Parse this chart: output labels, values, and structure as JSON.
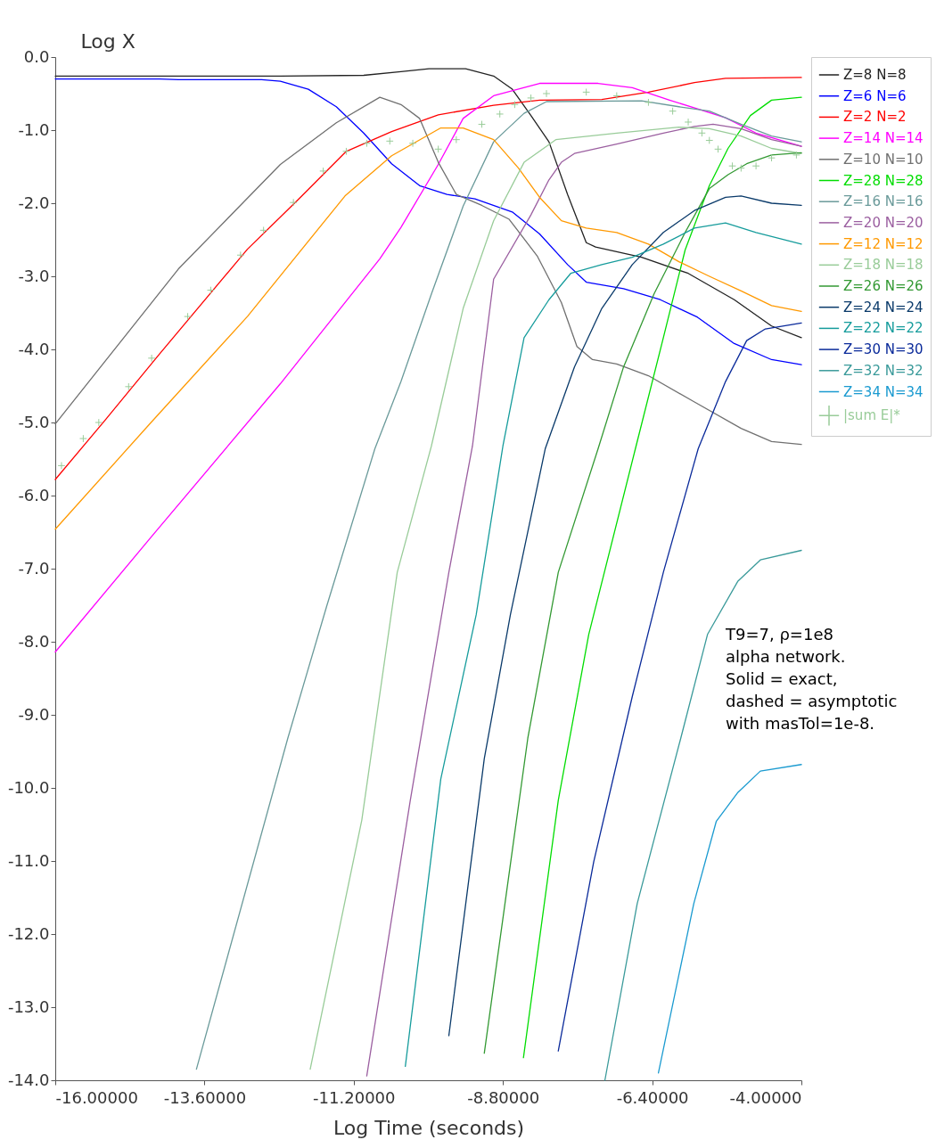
{
  "chart_data": {
    "type": "line",
    "xlabel": "Log Time (seconds)",
    "ylabel": "Log X",
    "xlim": [
      -16,
      -4
    ],
    "ylim": [
      -14,
      0
    ],
    "xticks": [
      {
        "value": -16,
        "label": "-16.00000"
      },
      {
        "value": -13.6,
        "label": "-13.60000"
      },
      {
        "value": -11.2,
        "label": "-11.20000"
      },
      {
        "value": -8.8,
        "label": "-8.80000"
      },
      {
        "value": -6.4,
        "label": "-6.40000"
      },
      {
        "value": -4,
        "label": "-4.00000"
      }
    ],
    "yticks": [
      {
        "value": 0,
        "label": "0.0"
      },
      {
        "value": -1,
        "label": "-1.0"
      },
      {
        "value": -2,
        "label": "-2.0"
      },
      {
        "value": -3,
        "label": "-3.0"
      },
      {
        "value": -4,
        "label": "-4.0"
      },
      {
        "value": -5,
        "label": "-5.0"
      },
      {
        "value": -6,
        "label": "-6.0"
      },
      {
        "value": -7,
        "label": "-7.0"
      },
      {
        "value": -8,
        "label": "-8.0"
      },
      {
        "value": -9,
        "label": "-9.0"
      },
      {
        "value": -10,
        "label": "-10.0"
      },
      {
        "value": -11,
        "label": "-11.0"
      },
      {
        "value": -12,
        "label": "-12.0"
      },
      {
        "value": -13,
        "label": "-13.0"
      },
      {
        "value": -14,
        "label": "-14.0"
      }
    ],
    "legend": "top right",
    "grid": false,
    "annotations": [
      "T9=7, ρ=1e8",
      "alpha network.",
      "Solid = exact,",
      "dashed = asymptotic",
      "with masTol=1e-8."
    ],
    "series": [
      {
        "name": "Z=8 N=8",
        "color": "#222222",
        "x": [
          -16,
          -12.38,
          -11.04,
          -10.44,
          -9.99,
          -9.4,
          -8.95,
          -8.65,
          -8.35,
          -8.06,
          -7.76,
          -7.46,
          -7.31,
          -6.57,
          -5.82,
          -5.08,
          -4.48,
          -4
        ],
        "values": [
          -0.26,
          -0.26,
          -0.25,
          -0.2,
          -0.16,
          -0.16,
          -0.26,
          -0.44,
          -0.8,
          -1.16,
          -1.88,
          -2.54,
          -2.6,
          -2.74,
          -2.96,
          -3.32,
          -3.68,
          -3.84
        ]
      },
      {
        "name": "Z=6 N=6",
        "color": "#0000ff",
        "x": [
          -16,
          -14.32,
          -14.02,
          -12.68,
          -12.38,
          -11.93,
          -11.48,
          -11.04,
          -10.59,
          -10.14,
          -9.7,
          -9.25,
          -8.65,
          -8.21,
          -7.76,
          -7.46,
          -6.86,
          -6.27,
          -5.67,
          -5.08,
          -4.48,
          -4
        ],
        "values": [
          -0.3,
          -0.3,
          -0.31,
          -0.31,
          -0.33,
          -0.44,
          -0.68,
          -1.04,
          -1.46,
          -1.76,
          -1.88,
          -1.94,
          -2.12,
          -2.42,
          -2.84,
          -3.08,
          -3.17,
          -3.32,
          -3.56,
          -3.92,
          -4.14,
          -4.21
        ]
      },
      {
        "name": "Z=2 N=2",
        "color": "#ff0000",
        "x": [
          -16,
          -15.21,
          -14.32,
          -12.91,
          -12.08,
          -11.32,
          -10.59,
          -9.84,
          -8.95,
          -8.21,
          -7.21,
          -6.46,
          -5.72,
          -5.22,
          -4
        ],
        "values": [
          -5.78,
          -4.98,
          -4.06,
          -2.63,
          -1.94,
          -1.29,
          -1.02,
          -0.79,
          -0.66,
          -0.59,
          -0.58,
          -0.48,
          -0.35,
          -0.29,
          -0.28
        ]
      },
      {
        "name": "Z=14 N=14",
        "color": "#ff00ff",
        "x": [
          -16,
          -14.45,
          -12.38,
          -10.78,
          -10.44,
          -9.84,
          -9.44,
          -8.95,
          -8.21,
          -7.27,
          -6.72,
          -6.12,
          -5.67,
          -5.22,
          -4.73,
          -4
        ],
        "values": [
          -8.14,
          -6.56,
          -4.47,
          -2.76,
          -2.33,
          -1.47,
          -0.84,
          -0.53,
          -0.36,
          -0.36,
          -0.42,
          -0.59,
          -0.71,
          -0.83,
          -1.04,
          -1.22
        ]
      },
      {
        "name": "Z=10 N=10",
        "color": "#707070",
        "x": [
          -16,
          -14.02,
          -12.38,
          -11.48,
          -10.78,
          -10.44,
          -10.14,
          -9.84,
          -9.55,
          -9.14,
          -8.7,
          -8.25,
          -7.86,
          -7.61,
          -7.36,
          -6.97,
          -6.46,
          -5.72,
          -4.97,
          -4.48,
          -4
        ],
        "values": [
          -5.02,
          -2.9,
          -1.47,
          -0.9,
          -0.55,
          -0.65,
          -0.84,
          -1.44,
          -1.88,
          -2.03,
          -2.22,
          -2.72,
          -3.36,
          -3.96,
          -4.14,
          -4.2,
          -4.36,
          -4.72,
          -5.08,
          -5.26,
          -5.3
        ]
      },
      {
        "name": "Z=28 N=28",
        "color": "#00dd00",
        "x": [
          -8.47,
          -7.91,
          -7.42,
          -6.67,
          -6.22,
          -5.87,
          -5.48,
          -5.18,
          -4.82,
          -4.48,
          -4
        ],
        "values": [
          -13.69,
          -10.17,
          -7.9,
          -5.36,
          -3.84,
          -2.64,
          -1.76,
          -1.25,
          -0.8,
          -0.59,
          -0.55
        ]
      },
      {
        "name": "Z=16 N=16",
        "color": "#6a9a9a",
        "x": [
          -13.73,
          -12.26,
          -11.63,
          -10.86,
          -10.44,
          -9.95,
          -9.44,
          -8.95,
          -8.46,
          -8.1,
          -6.57,
          -5.97,
          -5.48,
          -4.97,
          -4.48,
          -4
        ],
        "values": [
          -13.85,
          -9.32,
          -7.5,
          -5.36,
          -4.44,
          -3.24,
          -2.04,
          -1.16,
          -0.77,
          -0.61,
          -0.6,
          -0.68,
          -0.74,
          -0.92,
          -1.08,
          -1.16
        ]
      },
      {
        "name": "Z=20 N=20",
        "color": "#9b5fa0",
        "x": [
          -10.99,
          -10.29,
          -9.67,
          -9.29,
          -8.95,
          -8.35,
          -8.06,
          -7.86,
          -7.65,
          -6.97,
          -6.22,
          -5.72,
          -5.42,
          -4.97,
          -4.48,
          -4
        ],
        "values": [
          -13.94,
          -10.17,
          -7.05,
          -5.32,
          -3.04,
          -2.16,
          -1.68,
          -1.44,
          -1.32,
          -1.19,
          -1.04,
          -0.95,
          -0.92,
          -0.98,
          -1.13,
          -1.22
        ]
      },
      {
        "name": "Z=12 N=12",
        "color": "#ff9900",
        "x": [
          -16,
          -14.46,
          -12.91,
          -11.34,
          -10.59,
          -9.8,
          -9.44,
          -8.95,
          -8.55,
          -8.21,
          -7.86,
          -7.46,
          -6.97,
          -6.46,
          -5.97,
          -5.48,
          -4.97,
          -4.48,
          -4
        ],
        "values": [
          -6.46,
          -5.0,
          -3.55,
          -1.9,
          -1.35,
          -0.97,
          -0.97,
          -1.13,
          -1.52,
          -1.92,
          -2.24,
          -2.34,
          -2.4,
          -2.56,
          -2.8,
          -3.0,
          -3.2,
          -3.4,
          -3.48
        ]
      },
      {
        "name": "Z=18 N=18",
        "color": "#99cc99",
        "x": [
          -11.9,
          -11.07,
          -10.5,
          -9.95,
          -9.44,
          -8.95,
          -8.46,
          -7.95,
          -6.97,
          -5.97,
          -5.48,
          -4.97,
          -4.48,
          -4
        ],
        "values": [
          -13.85,
          -10.44,
          -7.05,
          -5.32,
          -3.44,
          -2.24,
          -1.44,
          -1.13,
          -1.04,
          -0.96,
          -0.98,
          -1.08,
          -1.25,
          -1.32
        ]
      },
      {
        "name": "Z=26 N=26",
        "color": "#339933",
        "x": [
          -9.1,
          -8.4,
          -7.91,
          -7.27,
          -6.86,
          -6.37,
          -5.87,
          -5.48,
          -5.18,
          -4.88,
          -4.48,
          -4
        ],
        "values": [
          -13.63,
          -9.32,
          -7.05,
          -5.36,
          -4.24,
          -3.24,
          -2.4,
          -1.8,
          -1.61,
          -1.46,
          -1.34,
          -1.31
        ]
      },
      {
        "name": "Z=24 N=24",
        "color": "#0a3a6a",
        "x": [
          -9.67,
          -9.1,
          -8.68,
          -8.12,
          -7.65,
          -7.21,
          -6.72,
          -6.22,
          -5.72,
          -5.22,
          -4.97,
          -4.48,
          -4
        ],
        "values": [
          -13.39,
          -9.6,
          -7.63,
          -5.36,
          -4.24,
          -3.44,
          -2.84,
          -2.4,
          -2.1,
          -1.92,
          -1.9,
          -2.0,
          -2.03
        ]
      },
      {
        "name": "Z=22 N=22",
        "color": "#169c9c",
        "x": [
          -10.37,
          -9.8,
          -9.23,
          -8.8,
          -8.46,
          -8.06,
          -7.71,
          -7.21,
          -6.72,
          -6.22,
          -5.72,
          -5.22,
          -4.73,
          -4
        ],
        "values": [
          -13.81,
          -9.88,
          -7.63,
          -5.32,
          -3.84,
          -3.32,
          -2.96,
          -2.84,
          -2.74,
          -2.56,
          -2.34,
          -2.27,
          -2.4,
          -2.56
        ]
      },
      {
        "name": "Z=30 N=30",
        "color": "#0a2a9a",
        "x": [
          -7.91,
          -7.34,
          -6.72,
          -6.22,
          -5.66,
          -5.22,
          -4.88,
          -4.58,
          -4
        ],
        "values": [
          -13.6,
          -11.01,
          -8.75,
          -7.05,
          -5.36,
          -4.44,
          -3.88,
          -3.72,
          -3.64
        ]
      },
      {
        "name": "Z=32 N=32",
        "color": "#3a9a9a",
        "x": [
          -7.16,
          -6.64,
          -5.94,
          -5.51,
          -5.02,
          -4.66,
          -4
        ],
        "values": [
          -14.0,
          -11.58,
          -9.32,
          -7.9,
          -7.17,
          -6.88,
          -6.75
        ]
      },
      {
        "name": "Z=34 N=34",
        "color": "#1a9ad0",
        "x": [
          -6.3,
          -5.73,
          -5.37,
          -5.02,
          -4.66,
          -4
        ],
        "values": [
          -13.9,
          -11.58,
          -10.46,
          -10.06,
          -9.77,
          -9.68
        ]
      },
      {
        "name": "|sum E|*",
        "color": "#99cc99",
        "type": "scatter",
        "marker": "cross",
        "x": [
          -15.9,
          -15.55,
          -15.3,
          -14.82,
          -14.45,
          -13.87,
          -13.5,
          -13.02,
          -12.65,
          -12.17,
          -11.69,
          -11.32,
          -10.99,
          -10.62,
          -10.25,
          -9.84,
          -9.55,
          -9.14,
          -8.85,
          -8.61,
          -8.35,
          -8.1,
          -7.46,
          -6.97,
          -6.46,
          -6.07,
          -5.82,
          -5.6,
          -5.48,
          -5.34,
          -5.11,
          -4.97,
          -4.73,
          -4.48,
          -4.08
        ],
        "values": [
          -5.59,
          -5.22,
          -5.0,
          -4.51,
          -4.12,
          -3.55,
          -3.19,
          -2.71,
          -2.37,
          -1.99,
          -1.56,
          -1.29,
          -1.18,
          -1.15,
          -1.18,
          -1.26,
          -1.13,
          -0.92,
          -0.78,
          -0.65,
          -0.56,
          -0.5,
          -0.48,
          -0.53,
          -0.62,
          -0.74,
          -0.89,
          -1.04,
          -1.14,
          -1.26,
          -1.49,
          -1.52,
          -1.49,
          -1.38,
          -1.34
        ]
      }
    ]
  }
}
